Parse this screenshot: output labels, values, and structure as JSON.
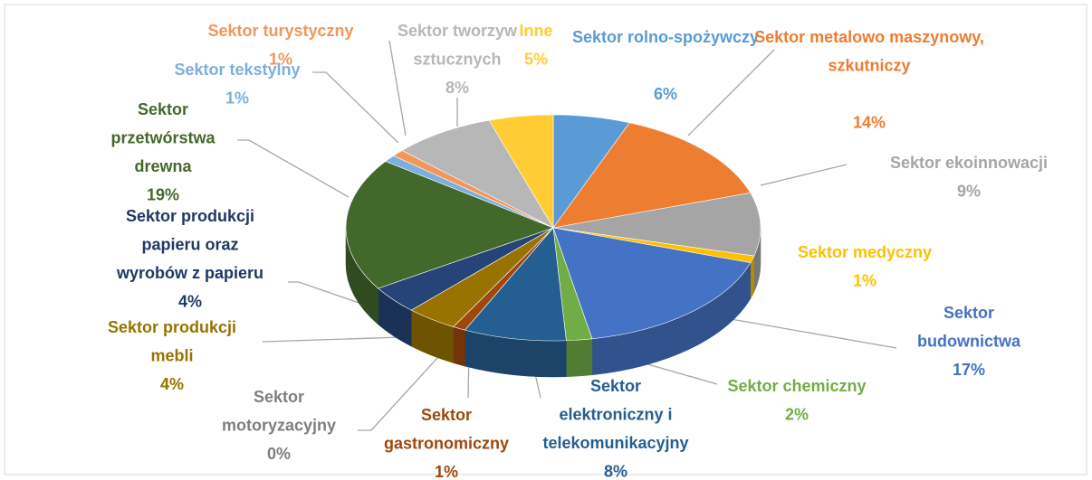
{
  "chart_data": {
    "type": "pie3d",
    "categories": [
      "Sektor rolno-spożywczy",
      "Sektor metalowo maszynowy, szkutniczy",
      "Sektor ekoinnowacji",
      "Sektor medyczny",
      "Sektor budownictwa",
      "Sektor chemiczny",
      "Sektor elektroniczny i telekomunikacyjny",
      "Sektor gastronomiczny",
      "Sektor motoryzacyjny",
      "Sektor produkcji mebli",
      "Sektor produkcji papieru oraz wyrobów z papieru",
      "Sektor przetwórstwa drewna",
      "Sektor tekstylny",
      "Sektor turystyczny",
      "Sektor tworzyw sztucznych",
      "Inne"
    ],
    "values": [
      6,
      14,
      9,
      1,
      17,
      2,
      8,
      1,
      0,
      4,
      4,
      19,
      1,
      1,
      8,
      5
    ],
    "value_labels": [
      "6%",
      "14%",
      "9%",
      "1%",
      "17%",
      "2%",
      "8%",
      "1%",
      "0%",
      "4%",
      "4%",
      "19%",
      "1%",
      "1%",
      "8%",
      "5%"
    ],
    "colors": [
      "#5b9bd5",
      "#ed7d31",
      "#a5a5a5",
      "#ffc000",
      "#4472c4",
      "#70ad47",
      "#255e91",
      "#9e480e",
      "#636363",
      "#997300",
      "#264478",
      "#43682b",
      "#7cafdd",
      "#f1975a",
      "#b7b7b7",
      "#ffcd33"
    ]
  }
}
